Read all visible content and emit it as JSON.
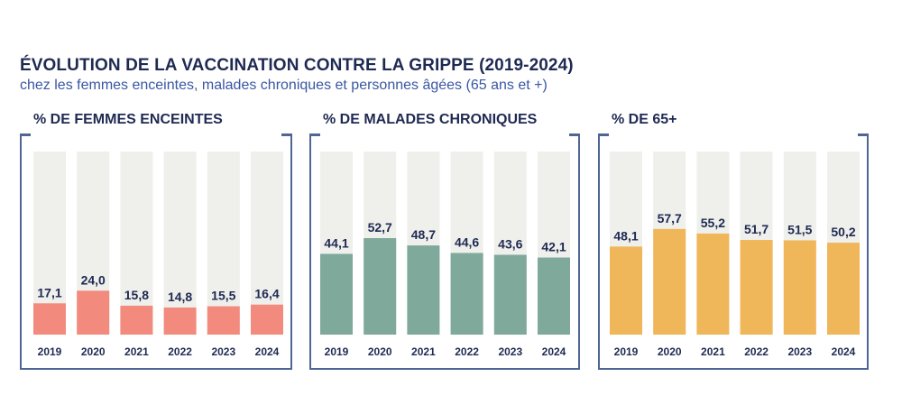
{
  "title": "ÉVOLUTION DE LA VACCINATION CONTRE LA GRIPPE (2019-2024)",
  "subtitle": "chez les femmes enceintes, malades chroniques et personnes âgées (65 ans et +)",
  "chart_data": [
    {
      "type": "bar",
      "title": "% DE FEMMES ENCEINTES",
      "categories": [
        "2019",
        "2020",
        "2021",
        "2022",
        "2023",
        "2024"
      ],
      "values": [
        17.1,
        24.0,
        15.8,
        14.8,
        15.5,
        16.4
      ],
      "value_labels": [
        "17,1",
        "24,0",
        "15,8",
        "14,8",
        "15,5",
        "16,4"
      ],
      "ylim": [
        0,
        100
      ],
      "color": "#f28b7d",
      "track_color": "#efefec"
    },
    {
      "type": "bar",
      "title": "% DE MALADES CHRONIQUES",
      "categories": [
        "2019",
        "2020",
        "2021",
        "2022",
        "2023",
        "2024"
      ],
      "values": [
        44.1,
        52.7,
        48.7,
        44.6,
        43.6,
        42.1
      ],
      "value_labels": [
        "44,1",
        "52,7",
        "48,7",
        "44,6",
        "43,6",
        "42,1"
      ],
      "ylim": [
        0,
        100
      ],
      "color": "#7fa99b",
      "track_color": "#efefec"
    },
    {
      "type": "bar",
      "title": "% DE 65+",
      "categories": [
        "2019",
        "2020",
        "2021",
        "2022",
        "2023",
        "2024"
      ],
      "values": [
        48.1,
        57.7,
        55.2,
        51.7,
        51.5,
        50.2
      ],
      "value_labels": [
        "48,1",
        "57,7",
        "55,2",
        "51,7",
        "51,5",
        "50,2"
      ],
      "ylim": [
        0,
        100
      ],
      "color": "#f0b65a",
      "track_color": "#efefec"
    }
  ]
}
